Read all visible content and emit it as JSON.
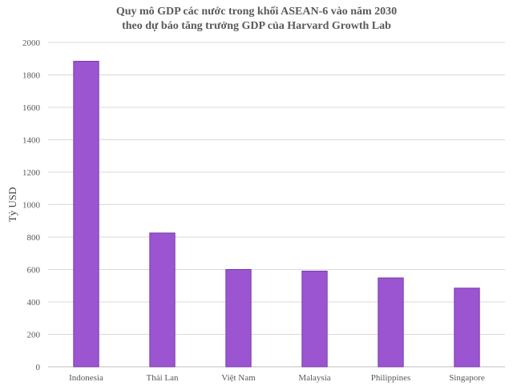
{
  "chart_data": {
    "type": "bar",
    "title": "Quy mô GDP các nước trong khối ASEAN-6 vào năm 2030",
    "subtitle": "theo dự báo tăng trưởng GDP của Harvard Growth Lab",
    "xlabel": "",
    "ylabel": "Tỷ USD",
    "ylim": [
      0,
      2000
    ],
    "yticks": [
      "0",
      "200",
      "400",
      "600",
      "800",
      "1000",
      "1200",
      "1400",
      "1600",
      "1800",
      "2000"
    ],
    "grid": true,
    "legend": "none",
    "categories": [
      "Indonesia",
      "Thái Lan",
      "Việt Nam",
      "Malaysia",
      "Philippines",
      "Singapore"
    ],
    "values": [
      1884,
      825,
      600,
      590,
      548,
      485
    ],
    "bar_color": "#9b55d1",
    "bar_edge_color": "#7a3aa8"
  }
}
